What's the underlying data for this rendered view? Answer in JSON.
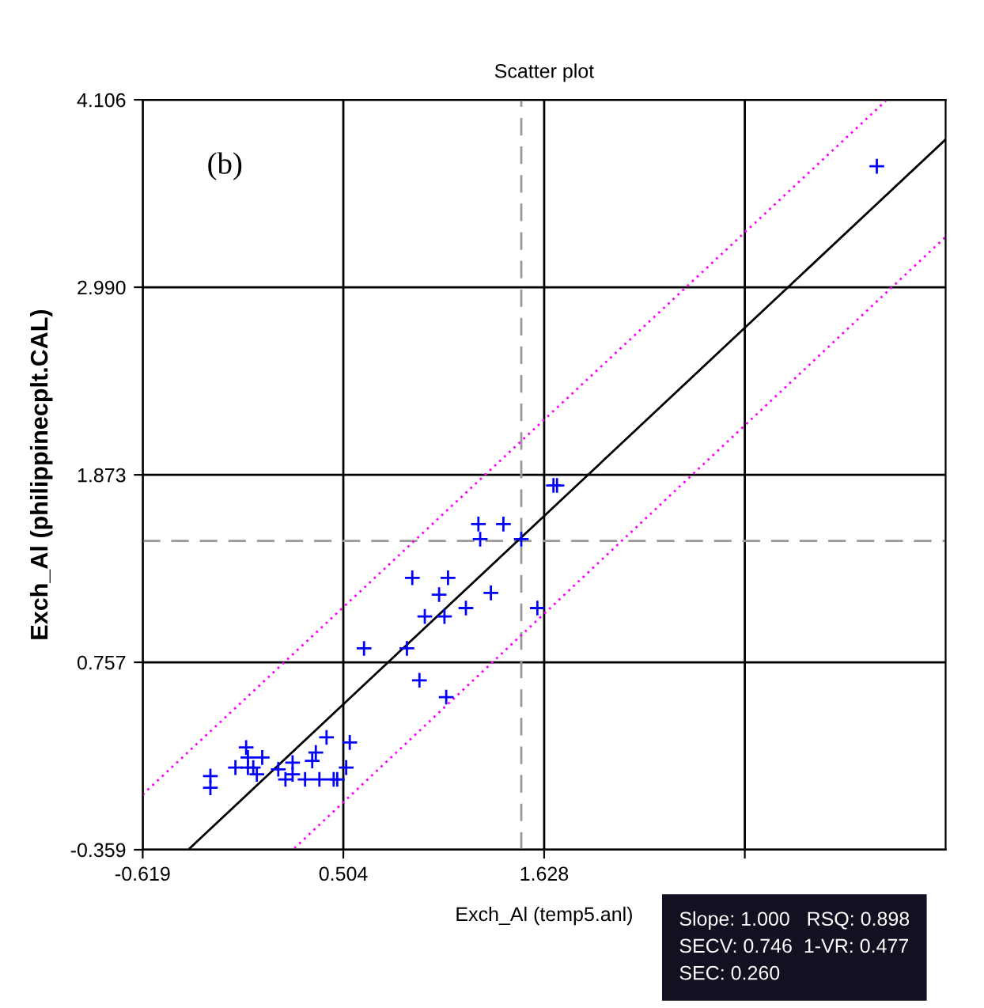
{
  "chart_data": {
    "type": "scatter",
    "title": "Scatter plot",
    "xlabel": "Exch_Al (temp5.anl)",
    "ylabel": "Exch_Al (philippinecplt.CAL)",
    "annotations": [
      "(b)",
      "Slope: 1.000   RSQ: 0.898\nSECV: 0.746  1-VR: 0.477\nSEC: 0.260"
    ],
    "xlim": [
      -0.619,
      3.875
    ],
    "ylim": [
      -0.359,
      4.106
    ],
    "xticks": [
      -0.619,
      0.504,
      1.628,
      {
        "value": 2.751,
        "label": null
      }
    ],
    "yticks": [
      -0.359,
      0.757,
      1.873,
      {
        "value": 2.99,
        "label": "2.990"
      },
      4.106
    ],
    "grid": true,
    "ref_lines": [
      {
        "axis": "y",
        "value": 1.48,
        "label": null,
        "color": "#999999",
        "line_style": "dashed"
      },
      {
        "axis": "x",
        "value": 1.5,
        "label": null,
        "color": "#999999",
        "line_style": "dashed"
      }
    ],
    "series": [
      {
        "color": "#0000ff",
        "marker": "cross",
        "x": [
          -0.24,
          -0.24,
          -0.1,
          -0.04,
          -0.03,
          -0.03,
          0.0,
          0.02,
          0.05,
          0.14,
          0.18,
          0.22,
          0.22,
          0.29,
          0.33,
          0.35,
          0.37,
          0.41,
          0.45,
          0.47,
          0.52,
          0.54,
          0.62,
          0.86,
          0.89,
          0.93,
          0.96,
          1.04,
          1.07,
          1.08,
          1.09,
          1.19,
          1.33,
          1.26,
          1.27,
          1.4,
          1.5,
          1.59,
          1.68,
          1.7,
          3.49
        ],
        "values": [
          0.08,
          0.01,
          0.13,
          0.25,
          0.19,
          0.13,
          0.13,
          0.09,
          0.19,
          0.12,
          0.06,
          0.16,
          0.09,
          0.06,
          0.17,
          0.22,
          0.06,
          0.31,
          0.06,
          0.06,
          0.13,
          0.28,
          0.84,
          0.84,
          1.26,
          0.65,
          1.03,
          1.16,
          1.03,
          0.55,
          1.26,
          1.08,
          1.17,
          1.58,
          1.49,
          1.58,
          1.49,
          1.08,
          1.81,
          1.81,
          3.71
        ]
      },
      {
        "type": "line",
        "color": "#000000",
        "line_style": "solid",
        "x": [
          -0.355,
          3.875
        ],
        "values": [
          -0.35,
          3.87
        ]
      },
      {
        "type": "line",
        "color": "#ff00ff",
        "line_style": "dotted",
        "x": [
          -0.619,
          3.54
        ],
        "values": [
          -0.03,
          4.1
        ]
      },
      {
        "type": "line",
        "color": "#ff00ff",
        "line_style": "dotted",
        "x": [
          0.23,
          3.875
        ],
        "values": [
          -0.35,
          3.29
        ]
      }
    ]
  }
}
